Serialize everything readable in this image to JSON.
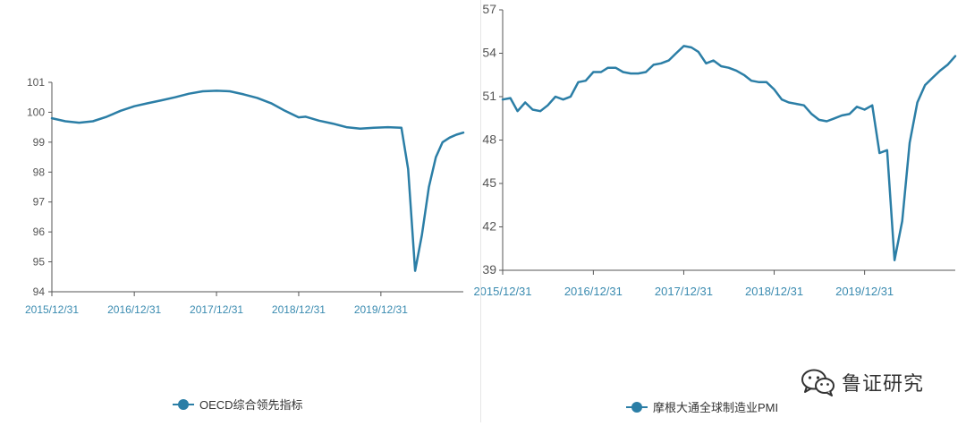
{
  "colors": {
    "line": "#2b7ea6",
    "axis": "#555555",
    "tick_text": "#555555",
    "xtick_text": "#3a8bb0"
  },
  "watermark": {
    "text": "鲁证研究",
    "icon": "wechat-icon"
  },
  "chart_data": [
    {
      "type": "line",
      "ylim": [
        94,
        101
      ],
      "yticks": [
        94,
        95,
        96,
        97,
        98,
        99,
        100,
        101
      ],
      "xlim": [
        "2015-12-31",
        "2020-12-31"
      ],
      "xticks": [
        "2015/12/31",
        "2016/12/31",
        "2017/12/31",
        "2018/12/31",
        "2019/12/31"
      ],
      "legend": "bottom",
      "series": [
        {
          "name": "OECD综合领先指标",
          "points": [
            [
              "2015-12-31",
              99.8
            ],
            [
              "2016-02-29",
              99.7
            ],
            [
              "2016-04-30",
              99.65
            ],
            [
              "2016-06-30",
              99.7
            ],
            [
              "2016-08-31",
              99.85
            ],
            [
              "2016-10-31",
              100.05
            ],
            [
              "2016-12-31",
              100.2
            ],
            [
              "2017-02-28",
              100.3
            ],
            [
              "2017-04-30",
              100.4
            ],
            [
              "2017-06-30",
              100.5
            ],
            [
              "2017-08-31",
              100.62
            ],
            [
              "2017-10-31",
              100.7
            ],
            [
              "2017-12-31",
              100.72
            ],
            [
              "2018-02-28",
              100.7
            ],
            [
              "2018-04-30",
              100.6
            ],
            [
              "2018-06-30",
              100.48
            ],
            [
              "2018-08-31",
              100.3
            ],
            [
              "2018-10-31",
              100.05
            ],
            [
              "2018-12-31",
              99.83
            ],
            [
              "2019-01-31",
              99.85
            ],
            [
              "2019-03-31",
              99.72
            ],
            [
              "2019-05-31",
              99.62
            ],
            [
              "2019-07-31",
              99.5
            ],
            [
              "2019-09-30",
              99.45
            ],
            [
              "2019-11-30",
              99.48
            ],
            [
              "2020-01-31",
              99.5
            ],
            [
              "2020-03-31",
              99.48
            ],
            [
              "2020-04-30",
              98.1
            ],
            [
              "2020-05-31",
              94.7
            ],
            [
              "2020-06-30",
              95.9
            ],
            [
              "2020-07-31",
              97.5
            ],
            [
              "2020-08-31",
              98.5
            ],
            [
              "2020-09-30",
              99.0
            ],
            [
              "2020-10-31",
              99.15
            ],
            [
              "2020-11-30",
              99.25
            ],
            [
              "2020-12-31",
              99.32
            ]
          ]
        }
      ]
    },
    {
      "type": "line",
      "ylim": [
        39,
        57
      ],
      "yticks": [
        39,
        42,
        45,
        48,
        51,
        54,
        57
      ],
      "xlim": [
        "2015-12-31",
        "2020-12-31"
      ],
      "xticks": [
        "2015/12/31",
        "2016/12/31",
        "2017/12/31",
        "2018/12/31",
        "2019/12/31"
      ],
      "legend": "bottom",
      "series": [
        {
          "name": "摩根大通全球制造业PMI",
          "points": [
            [
              "2015-12-31",
              50.8
            ],
            [
              "2016-01-31",
              50.9
            ],
            [
              "2016-02-29",
              50.0
            ],
            [
              "2016-03-31",
              50.6
            ],
            [
              "2016-04-30",
              50.1
            ],
            [
              "2016-05-31",
              50.0
            ],
            [
              "2016-06-30",
              50.4
            ],
            [
              "2016-07-31",
              51.0
            ],
            [
              "2016-08-31",
              50.8
            ],
            [
              "2016-09-30",
              51.0
            ],
            [
              "2016-10-31",
              52.0
            ],
            [
              "2016-11-30",
              52.1
            ],
            [
              "2016-12-31",
              52.7
            ],
            [
              "2017-01-31",
              52.7
            ],
            [
              "2017-02-28",
              53.0
            ],
            [
              "2017-03-31",
              53.0
            ],
            [
              "2017-04-30",
              52.7
            ],
            [
              "2017-05-31",
              52.6
            ],
            [
              "2017-06-30",
              52.6
            ],
            [
              "2017-07-31",
              52.7
            ],
            [
              "2017-08-31",
              53.2
            ],
            [
              "2017-09-30",
              53.3
            ],
            [
              "2017-10-31",
              53.5
            ],
            [
              "2017-11-30",
              54.0
            ],
            [
              "2017-12-31",
              54.5
            ],
            [
              "2018-01-31",
              54.4
            ],
            [
              "2018-02-28",
              54.1
            ],
            [
              "2018-03-31",
              53.3
            ],
            [
              "2018-04-30",
              53.5
            ],
            [
              "2018-05-31",
              53.1
            ],
            [
              "2018-06-30",
              53.0
            ],
            [
              "2018-07-31",
              52.8
            ],
            [
              "2018-08-31",
              52.5
            ],
            [
              "2018-09-30",
              52.1
            ],
            [
              "2018-10-31",
              52.0
            ],
            [
              "2018-11-30",
              52.0
            ],
            [
              "2018-12-31",
              51.5
            ],
            [
              "2019-01-31",
              50.8
            ],
            [
              "2019-02-28",
              50.6
            ],
            [
              "2019-03-31",
              50.5
            ],
            [
              "2019-04-30",
              50.4
            ],
            [
              "2019-05-31",
              49.8
            ],
            [
              "2019-06-30",
              49.4
            ],
            [
              "2019-07-31",
              49.3
            ],
            [
              "2019-08-31",
              49.5
            ],
            [
              "2019-09-30",
              49.7
            ],
            [
              "2019-10-31",
              49.8
            ],
            [
              "2019-11-30",
              50.3
            ],
            [
              "2019-12-31",
              50.1
            ],
            [
              "2020-01-31",
              50.4
            ],
            [
              "2020-02-29",
              47.1
            ],
            [
              "2020-03-31",
              47.3
            ],
            [
              "2020-04-30",
              39.7
            ],
            [
              "2020-05-31",
              42.4
            ],
            [
              "2020-06-30",
              47.8
            ],
            [
              "2020-07-31",
              50.6
            ],
            [
              "2020-08-31",
              51.8
            ],
            [
              "2020-09-30",
              52.3
            ],
            [
              "2020-10-31",
              52.8
            ],
            [
              "2020-11-30",
              53.2
            ],
            [
              "2020-12-31",
              53.8
            ]
          ]
        }
      ]
    }
  ]
}
